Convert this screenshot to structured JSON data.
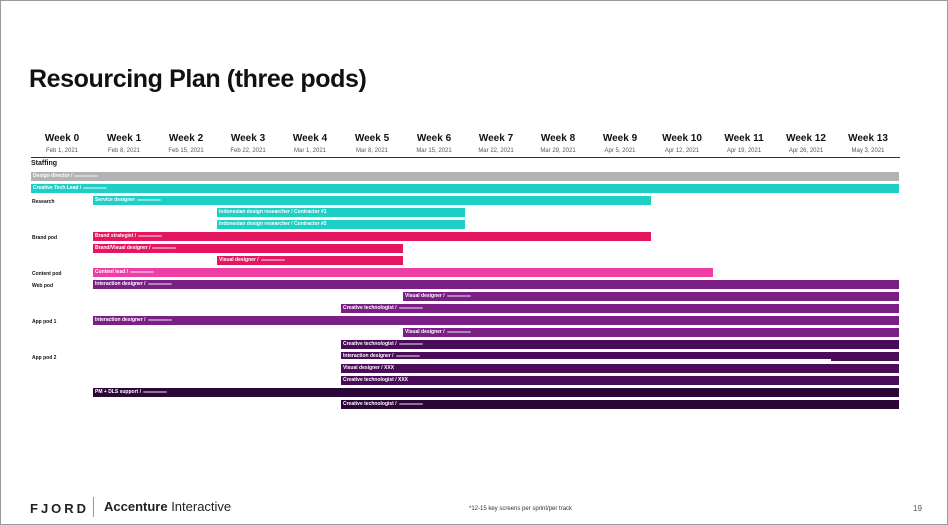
{
  "title": "Resourcing Plan (three pods)",
  "weeks": [
    {
      "label": "Week 0",
      "date": "Feb 1, 2021"
    },
    {
      "label": "Week 1",
      "date": "Feb 8, 2021"
    },
    {
      "label": "Week 2",
      "date": "Feb 15, 2021"
    },
    {
      "label": "Week 3",
      "date": "Feb 22, 2021"
    },
    {
      "label": "Week 4",
      "date": "Mar 1, 2021"
    },
    {
      "label": "Week 5",
      "date": "Mar 8, 2021"
    },
    {
      "label": "Week 6",
      "date": "Mar 15, 2021"
    },
    {
      "label": "Week 7",
      "date": "Mar 22, 2021"
    },
    {
      "label": "Week 8",
      "date": "Mar 29, 2021"
    },
    {
      "label": "Week 9",
      "date": "Apr 5, 2021"
    },
    {
      "label": "Week 10",
      "date": "Apr 12, 2021"
    },
    {
      "label": "Week 11",
      "date": "Apr 19, 2021"
    },
    {
      "label": "Week 12",
      "date": "Apr 26, 2021"
    },
    {
      "label": "Week 13",
      "date": "May 3, 2021"
    }
  ],
  "section_label": "Staffing",
  "row_labels": {
    "research": "Research",
    "brand": "Brand pod",
    "content": "Content pod",
    "web": "Web pod",
    "app1": "App pod 1",
    "app2": "App pod 2"
  },
  "colors": {
    "grey": "#b3b3b3",
    "teal": "#1ecfc6",
    "crimson": "#e3165f",
    "pink": "#ee3ea5",
    "purple": "#7b1f86",
    "dark_purple": "#4a0b58",
    "darkest": "#2c0636"
  },
  "bars": [
    {
      "label": "Design director / ",
      "start_week": -0.5,
      "end_week": 13.5,
      "color": "#b3b3b3",
      "blur": true
    },
    {
      "label": "Creative Tech Lead / ",
      "start_week": -0.5,
      "end_week": 13.5,
      "color": "#1ecfc6",
      "blur": true
    },
    {
      "label": "Service designer ",
      "start_week": 0.5,
      "end_week": 9.5,
      "color": "#1ecfc6",
      "blur": true
    },
    {
      "label": "Indonesian design researcher / Contractor #1",
      "start_week": 2.5,
      "end_week": 6.5,
      "color": "#1ecfc6",
      "blur": false
    },
    {
      "label": "Indonesian design researcher / Contractor #2",
      "start_week": 2.5,
      "end_week": 6.5,
      "color": "#1ecfc6",
      "blur": false
    },
    {
      "label": "Brand strategist / ",
      "start_week": 0.5,
      "end_week": 9.5,
      "color": "#e3165f",
      "blur": true
    },
    {
      "label": "Brand/Visual designer / ",
      "start_week": 0.5,
      "end_week": 5.5,
      "color": "#e3165f",
      "blur": true
    },
    {
      "label": "Visual designer / ",
      "start_week": 2.5,
      "end_week": 5.5,
      "color": "#e3165f",
      "blur": true
    },
    {
      "label": "Content lead / ",
      "start_week": 0.5,
      "end_week": 10.5,
      "color": "#ee3ea5",
      "blur": true
    },
    {
      "label": "Interaction designer / ",
      "start_week": 0.5,
      "end_week": 13.5,
      "color": "#7b1f86",
      "blur": true
    },
    {
      "label": "Visual designer / ",
      "start_week": 5.5,
      "end_week": 13.5,
      "color": "#7b1f86",
      "blur": true
    },
    {
      "label": "Creative technologist / ",
      "start_week": 4.5,
      "end_week": 13.5,
      "color": "#7b1f86",
      "blur": true
    },
    {
      "label": "Interaction designer / ",
      "start_week": 0.5,
      "end_week": 13.5,
      "color": "#7b1f86",
      "blur": true
    },
    {
      "label": "Visual designer / ",
      "start_week": 5.5,
      "end_week": 13.5,
      "color": "#7b1f86",
      "blur": true
    },
    {
      "label": "Creative technologist / ",
      "start_week": 4.5,
      "end_week": 13.5,
      "color": "#4a0b58",
      "blur": true
    },
    {
      "label": "Interaction designer / ",
      "start_week": 4.5,
      "end_week": 13.5,
      "color": "#4a0b58",
      "blur": true
    },
    {
      "label": "Visual designer / XXX",
      "start_week": 4.5,
      "end_week": 13.5,
      "color": "#4a0b58",
      "blur": false
    },
    {
      "label": "Creative technologist / XXX",
      "start_week": 4.5,
      "end_week": 13.5,
      "color": "#4a0b58",
      "blur": false
    },
    {
      "label": "PM + DLS support / ",
      "start_week": 0.5,
      "end_week": 13.5,
      "color": "#2c0636",
      "blur": true
    },
    {
      "label": "Creative technologist / ",
      "start_week": 4.5,
      "end_week": 13.5,
      "color": "#2c0636",
      "blur": true
    }
  ],
  "footer": {
    "brand1": "FJORD",
    "brand2_bold": "Accenture",
    "brand2_rest": " Interactive",
    "note": "*12-15 key screens per sprint/per track",
    "page": "19"
  }
}
